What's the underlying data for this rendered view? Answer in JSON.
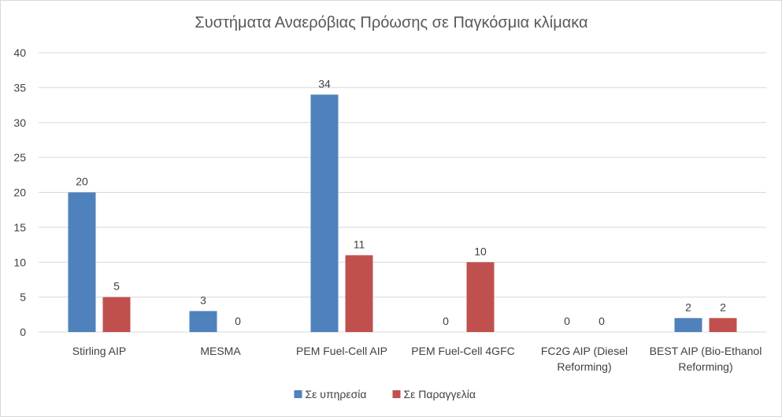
{
  "chart_data": {
    "type": "bar",
    "title": "Συστήματα Αναερόβιας Πρόωσης σε Παγκόσμια κλίμακα",
    "xlabel": "",
    "ylabel": "",
    "ylim": [
      0,
      40
    ],
    "yticks": [
      0,
      5,
      10,
      15,
      20,
      25,
      30,
      35,
      40
    ],
    "grid": true,
    "legend_position": "bottom",
    "categories": [
      [
        "Stirling AIP"
      ],
      [
        "MESMA"
      ],
      [
        "PEM Fuel-Cell AIP"
      ],
      [
        "PEM Fuel-Cell 4GFC"
      ],
      [
        "FC2G AIP (Diesel",
        "Reforming)"
      ],
      [
        "BEST AIP (Bio-Ethanol",
        "Reforming)"
      ]
    ],
    "series": [
      {
        "name": "Σε υπηρεσία",
        "color": "#4f81bd",
        "values": [
          20,
          3,
          34,
          0,
          0,
          2
        ]
      },
      {
        "name": "Σε Παραγγελία",
        "color": "#c0504d",
        "values": [
          5,
          0,
          11,
          10,
          0,
          2
        ]
      }
    ],
    "data_labels": true
  }
}
